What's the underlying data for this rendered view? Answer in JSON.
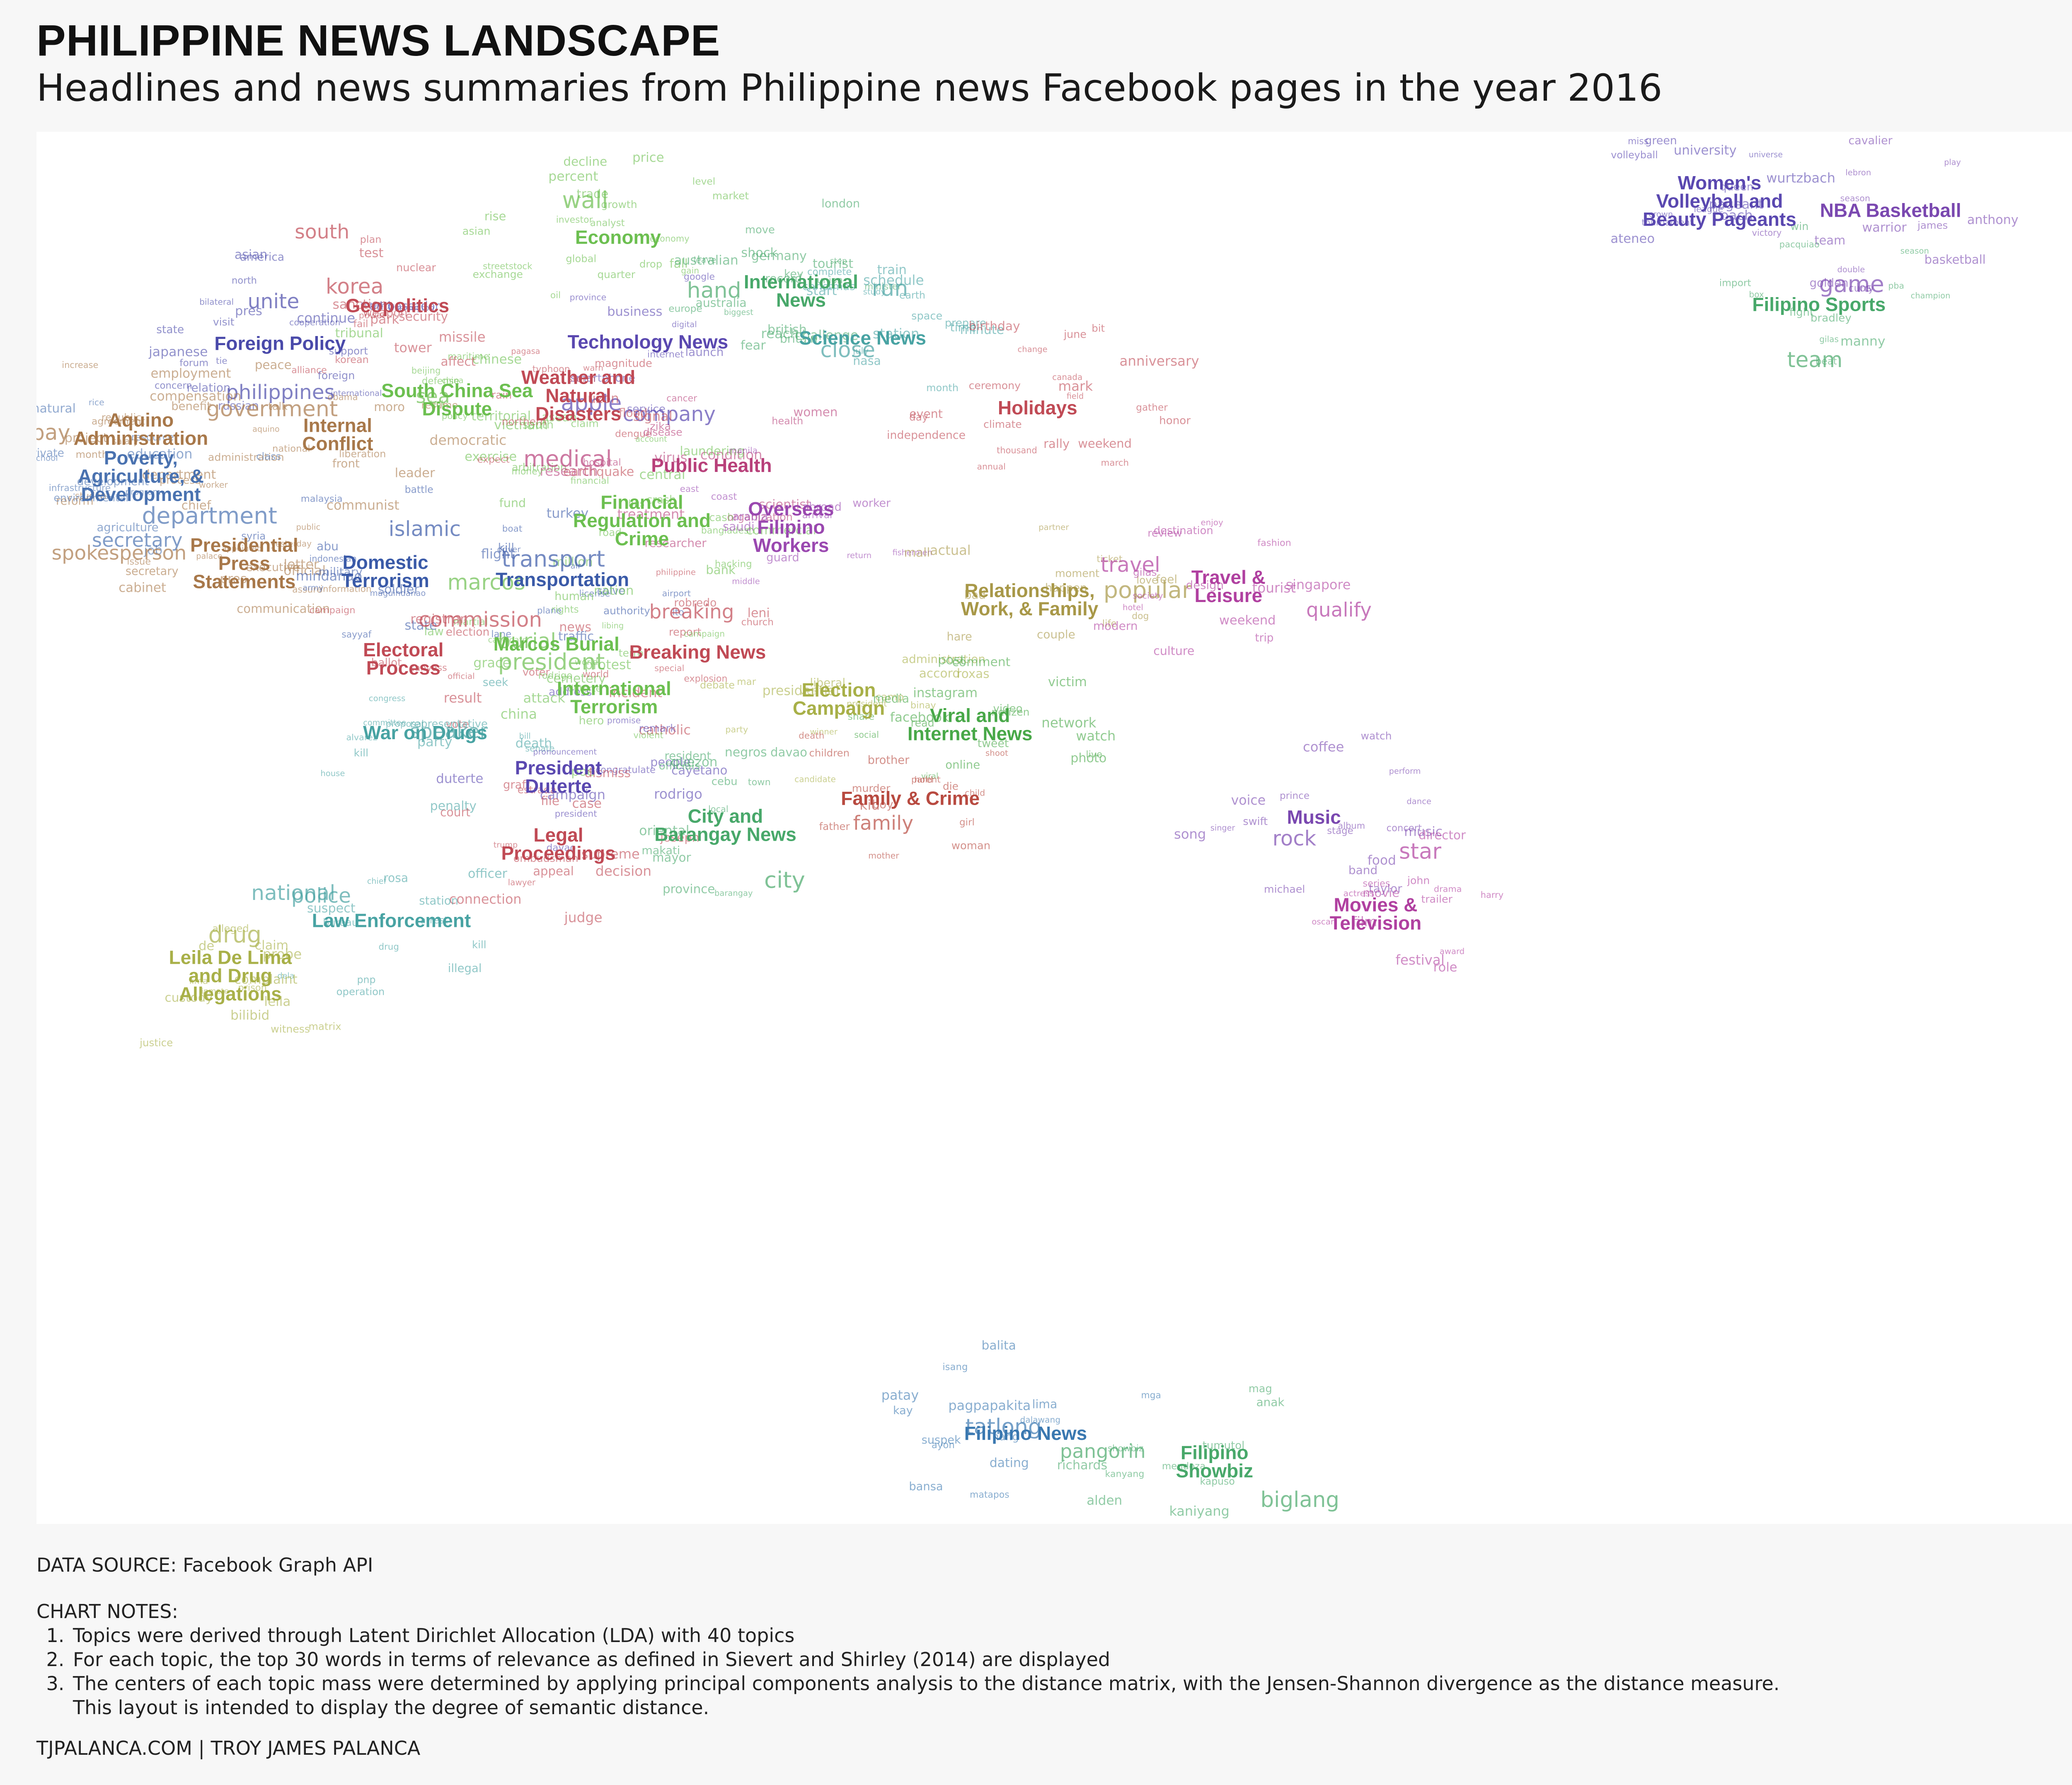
{
  "title": "PHILIPPINE NEWS LANDSCAPE",
  "subtitle": "Headlines and news summaries from Philippine news Facebook pages in the year 2016",
  "source": "DATA SOURCE: Facebook Graph API",
  "notes": {
    "heading": "CHART NOTES:",
    "items": [
      "Topics were derived through Latent Dirichlet Allocation (LDA) with 40 topics",
      "For each topic, the top 30 words in terms of relevance as defined in Sievert and Shirley (2014) are displayed",
      "The centers of each topic mass were determined by applying principal components analysis to the distance matrix, with the Jensen-Shannon divergence as the distance measure.",
      "This layout is intended to display the degree of semantic distance."
    ]
  },
  "credit": "TJPALANCA.COM | TROY JAMES PALANCA",
  "chart_data": {
    "type": "scatter",
    "title": "PHILIPPINE NEWS LANDSCAPE",
    "grid": false,
    "xlim": [
      0,
      1000
    ],
    "ylim": [
      0,
      1000
    ],
    "topics": [
      {
        "label": "Economy",
        "x": 280,
        "y": 60,
        "color": "#6cbf50",
        "words": [
          "wall",
          "percent",
          "decline",
          "oil",
          "investor",
          "price",
          "fall",
          "global",
          "market",
          "streetstock",
          "drop",
          "asian",
          "growth",
          "level",
          "rise",
          "gain",
          "trade",
          "quarter",
          "exchange",
          "economy",
          "analyst"
        ]
      },
      {
        "label": "International News",
        "x": 372,
        "y": 100,
        "color": "#48a86a",
        "words": [
          "british",
          "hand",
          "key",
          "australia",
          "reach",
          "challenge",
          "record",
          "shock",
          "germany",
          "minister",
          "australian",
          "leave",
          "union",
          "europe",
          "tourist",
          "biggest",
          "fear",
          "london",
          "step",
          "britain",
          "move"
        ]
      },
      {
        "label": "Geopolitics",
        "x": 169,
        "y": 111,
        "color": "#c04a55",
        "words": [
          "south",
          "korea",
          "korean",
          "fail",
          "missile",
          "test",
          "nuclear",
          "sanction",
          "weapon",
          "power",
          "security",
          "plan",
          "tower",
          "park",
          "alliance"
        ]
      },
      {
        "label": "Foreign Policy",
        "x": 110,
        "y": 139,
        "color": "#4a4aaa",
        "words": [
          "philippines",
          "unite",
          "state",
          "north",
          "international",
          "foreign",
          "relation",
          "visit",
          "forum",
          "ambassador",
          "concern",
          "support",
          "washington",
          "tie",
          "continue",
          "asian",
          "japanese",
          "russian",
          "bilateral",
          "country",
          "pres",
          "america",
          "cooperation"
        ]
      },
      {
        "label": "Technology News",
        "x": 295,
        "y": 138,
        "color": "#5a48b0",
        "words": [
          "company",
          "apple",
          "business",
          "google",
          "internet",
          "smartphone",
          "launch",
          "digital",
          "service",
          "province"
        ]
      },
      {
        "label": "Science News",
        "x": 403,
        "y": 135,
        "color": "#48a3a3",
        "words": [
          "run",
          "close",
          "study",
          "minute",
          "nasa",
          "space",
          "prepare",
          "christmas",
          "complete",
          "july",
          "earth",
          "station",
          "schedule",
          "train",
          "time",
          "month",
          "start"
        ]
      },
      {
        "label": "South China Sea Dispute",
        "x": 199,
        "y": 181,
        "color": "#6cbf50",
        "words": [
          "sea",
          "arbitration",
          "claim",
          "tribunal",
          "maritime",
          "china",
          "chinese",
          "beijing",
          "south",
          "defense",
          "policy",
          "territorial",
          "vietnam",
          "asean",
          "talk",
          "exercise"
        ]
      },
      {
        "label": "Weather and Natural Disasters",
        "x": 260,
        "y": 178,
        "color": "#c04a55",
        "words": [
          "typhoon",
          "storm",
          "northern",
          "luzon",
          "signal",
          "warn",
          "earthquake",
          "expect",
          "flood",
          "rain",
          "pagasa",
          "affect",
          "magnitude",
          "dengue"
        ]
      },
      {
        "label": "Holidays",
        "x": 491,
        "y": 187,
        "color": "#c04a55",
        "words": [
          "day",
          "bit",
          "independence",
          "anniversary",
          "weekend",
          "thousand",
          "canada",
          "march",
          "gather",
          "mark",
          "climate",
          "rally",
          "event",
          "birthday",
          "annual",
          "ceremony",
          "honor",
          "june",
          "change",
          "field"
        ]
      },
      {
        "label": "Aquino Administration",
        "x": 40,
        "y": 203,
        "color": "#a8784a",
        "words": [
          "month",
          "pay",
          "aquino",
          "republic",
          "salary",
          "reform",
          "compensation",
          "administration",
          "project",
          "benefit",
          "process",
          "agreement",
          "student",
          "department",
          "employment",
          "worker",
          "increase"
        ]
      },
      {
        "label": "Internal Conflict",
        "x": 139,
        "y": 207,
        "color": "#a8784a",
        "words": [
          "government",
          "communist",
          "peace",
          "democratic",
          "obama",
          "liberation",
          "moro",
          "front",
          "talk",
          "national",
          "resume",
          "leader"
        ]
      },
      {
        "label": "Public Health",
        "x": 327,
        "y": 230,
        "color": "#b8407a",
        "words": [
          "hospital",
          "medical",
          "organization",
          "research",
          "condition",
          "scientist",
          "health",
          "researcher",
          "cancer",
          "treatment",
          "disease",
          "women",
          "virus",
          "zika"
        ]
      },
      {
        "label": "Poverty, Agriculture, & Development",
        "x": 40,
        "y": 238,
        "color": "#4a72b0",
        "words": [
          "department",
          "secretary",
          "agriculture",
          "development",
          "infrastructure",
          "school",
          "rice",
          "natural",
          "resource",
          "environmental",
          "education",
          "job",
          "private",
          "class",
          "program"
        ]
      },
      {
        "label": "Financial Regulation and Crime",
        "x": 292,
        "y": 271,
        "color": "#6cbf50",
        "words": [
          "bank",
          "million",
          "money",
          "financial",
          "commercial",
          "central",
          "laundering",
          "fund",
          "account",
          "cash",
          "bangladesh",
          "hacking",
          "crash",
          "road",
          "bus"
        ]
      },
      {
        "label": "Overseas Filipino Workers",
        "x": 367,
        "y": 276,
        "color": "#9a48b0",
        "words": [
          "saudi",
          "arabia",
          "coast",
          "guard",
          "abroad",
          "worker",
          "return",
          "arrival",
          "fishermen",
          "middle",
          "east",
          "manila"
        ]
      },
      {
        "label": "Presidential Press Statements",
        "x": 92,
        "y": 303,
        "color": "#a8784a",
        "words": [
          "secretary",
          "spokesperson",
          "official",
          "communication",
          "chief",
          "public",
          "palace",
          "assure",
          "appointed",
          "executive",
          "cabinet",
          "issue",
          "information",
          "pres",
          "yesterday",
          "letter"
        ]
      },
      {
        "label": "Domestic Terrorism",
        "x": 163,
        "y": 309,
        "color": "#3a5aa8",
        "words": [
          "military",
          "islamic",
          "indonesian",
          "army",
          "malaysia",
          "syria",
          "sayyaf",
          "abu",
          "state",
          "maguindanao",
          "mindanao",
          "battle",
          "soldier",
          "kill"
        ]
      },
      {
        "label": "Transportation",
        "x": 252,
        "y": 315,
        "color": "#3a5aa8",
        "words": [
          "traffic",
          "transport",
          "flight",
          "plane",
          "airport",
          "turkey",
          "driver",
          "license",
          "authority",
          "lane",
          "boat",
          "solve",
          "lto",
          "air"
        ]
      },
      {
        "label": "Relationships, Work, & Family",
        "x": 487,
        "y": 330,
        "color": "#a89848",
        "words": [
          "ticket",
          "popular",
          "mall",
          "partner",
          "bad",
          "life",
          "happen",
          "actual",
          "moment",
          "hare",
          "love",
          "couple",
          "dog",
          "feel"
        ]
      },
      {
        "label": "Travel & Leisure",
        "x": 587,
        "y": 320,
        "color": "#b040a0",
        "words": [
          "qualify",
          "travel",
          "society",
          "tourist",
          "trip",
          "destination",
          "enjoy",
          "review",
          "modern",
          "hotel",
          "weekend",
          "design",
          "singapore",
          "fashion",
          "culture",
          "gilas"
        ]
      },
      {
        "label": "Marcos Burial",
        "x": 249,
        "y": 363,
        "color": "#6cbf50",
        "words": [
          "marcos",
          "burial",
          "hero",
          "cemetery",
          "martial",
          "law",
          "human",
          "rights",
          "protest",
          "candidate",
          "libing",
          "nation"
        ]
      },
      {
        "label": "Electoral Process",
        "x": 172,
        "y": 374,
        "color": "#c04a55",
        "words": [
          "election",
          "commission",
          "vote",
          "campaign",
          "canvass",
          "registrar",
          "voter",
          "ballot",
          "official",
          "result"
        ]
      },
      {
        "label": "Breaking News",
        "x": 320,
        "y": 369,
        "color": "#c04a55",
        "words": [
          "breaking",
          "news",
          "report",
          "explosion",
          "incident",
          "catholic",
          "church",
          "robredo",
          "leni",
          "special",
          "world",
          "philippine"
        ]
      },
      {
        "label": "International Terrorism",
        "x": 278,
        "y": 403,
        "color": "#6cbf50",
        "words": [
          "president",
          "duterte",
          "china",
          "rodrigo",
          "attack",
          "terror",
          "violent",
          "campaign",
          "grace",
          "poe",
          "world"
        ]
      },
      {
        "label": "Election Campaign",
        "x": 391,
        "y": 404,
        "color": "#a8b048",
        "words": [
          "candidate",
          "presidential",
          "debate",
          "binay",
          "roxas",
          "vice",
          "president",
          "party",
          "liberal",
          "administration",
          "camp",
          "accord",
          "winner",
          "mar"
        ]
      },
      {
        "label": "Viral and Internet News",
        "x": 457,
        "y": 423,
        "color": "#48a848",
        "words": [
          "video",
          "social",
          "media",
          "photo",
          "viral",
          "facebook",
          "network",
          "online",
          "live",
          "post",
          "netizen",
          "share",
          "comment",
          "read",
          "watch",
          "instagram",
          "tweet",
          "victim"
        ]
      },
      {
        "label": "War on Drugs",
        "x": 183,
        "y": 429,
        "color": "#48a3a3",
        "words": [
          "house",
          "speaker",
          "committee",
          "death",
          "penalty",
          "senate",
          "bill",
          "congress",
          "representative",
          "party",
          "seek",
          "kill",
          "proposal",
          "alvarez"
        ]
      },
      {
        "label": "President Duterte",
        "x": 250,
        "y": 462,
        "color": "#5a48b0",
        "words": [
          "president",
          "duterte",
          "rodrigo",
          "davao",
          "pronouncement",
          "address",
          "remark",
          "campaign",
          "promise",
          "congratulate",
          "cayetano",
          "people"
        ]
      },
      {
        "label": "Family & Crime",
        "x": 427,
        "y": 478,
        "color": "#b84a40",
        "words": [
          "family",
          "murder",
          "mother",
          "brother",
          "boy",
          "father",
          "girl",
          "death",
          "woman",
          "child",
          "parent",
          "die",
          "shoot",
          "hold",
          "children",
          "kid"
        ]
      },
      {
        "label": "City and Barangay News",
        "x": 334,
        "y": 498,
        "color": "#48a86a",
        "words": [
          "city",
          "mayor",
          "barangay",
          "quezon",
          "makati",
          "davao",
          "cebu",
          "local",
          "resident",
          "officials",
          "oriental",
          "negros",
          "province",
          "town"
        ]
      },
      {
        "label": "Legal Proceedings",
        "x": 250,
        "y": 512,
        "color": "#c04a55",
        "words": [
          "judge",
          "court",
          "case",
          "supreme",
          "file",
          "trump",
          "ombudsman",
          "appeal",
          "dismiss",
          "decision",
          "lawyer",
          "graft",
          "connection",
          "joseph",
          "estrada"
        ]
      },
      {
        "label": "Law Enforcement",
        "x": 166,
        "y": 569,
        "color": "#48a3a3",
        "words": [
          "police",
          "national",
          "operation",
          "officer",
          "chief",
          "arrest",
          "pnp",
          "illegal",
          "bureau",
          "station",
          "suspect",
          "dela",
          "rosa",
          "kill",
          "drug"
        ]
      },
      {
        "label": "Leila De Lima and Drug Allegations",
        "x": 85,
        "y": 610,
        "color": "#a8b048",
        "words": [
          "drug",
          "justice",
          "de",
          "lima",
          "leila",
          "bilibid",
          "inmate",
          "probe",
          "claim",
          "witness",
          "custody",
          "prison",
          "complaint",
          "alleged",
          "matrix"
        ]
      },
      {
        "label": "Music",
        "x": 630,
        "y": 492,
        "color": "#7a48b0",
        "words": [
          "food",
          "rock",
          "music",
          "concert",
          "voice",
          "singer",
          "song",
          "album",
          "stage",
          "dance",
          "band",
          "perform",
          "watch",
          "coffee",
          "prince",
          "michael",
          "taylor",
          "swift"
        ]
      },
      {
        "label": "Movies & Television",
        "x": 661,
        "y": 564,
        "color": "#b040a0",
        "words": [
          "star",
          "actress",
          "director",
          "trailer",
          "film",
          "movie",
          "festival",
          "drama",
          "oscar",
          "series",
          "role",
          "award",
          "john",
          "harry"
        ]
      },
      {
        "label": "Women's Volleyball and Beauty Pageants",
        "x": 834,
        "y": 33,
        "color": "#5a48b0",
        "words": [
          "university",
          "coach",
          "league",
          "volleyball",
          "pageant",
          "universe",
          "crown",
          "queen",
          "tournament",
          "ateneo",
          "miss",
          "green",
          "wurtzbach"
        ]
      },
      {
        "label": "NBA Basketball",
        "x": 920,
        "y": 40,
        "color": "#7a48b0",
        "words": [
          "game",
          "james",
          "team",
          "warrior",
          "golden",
          "basketball",
          "los",
          "curry",
          "anthony",
          "season",
          "double",
          "victory",
          "play",
          "cavalier",
          "lebron"
        ]
      },
      {
        "label": "Filipino Sports",
        "x": 884,
        "y": 110,
        "color": "#48a86a",
        "words": [
          "pba",
          "team",
          "season",
          "champion",
          "fight",
          "pacquiao",
          "box",
          "manny",
          "beat",
          "win",
          "import",
          "bradley",
          "gilas"
        ]
      },
      {
        "label": "Filipino News",
        "x": 485,
        "y": 951,
        "color": "#3a78b0",
        "words": [
          "tatlong",
          "nang",
          "dating",
          "mga",
          "matapos",
          "bansa",
          "balita",
          "pagpapakita",
          "dalawang",
          "kay",
          "ayon",
          "patay",
          "lima",
          "isang",
          "suspek"
        ]
      },
      {
        "label": "Filipino Showbiz",
        "x": 580,
        "y": 972,
        "color": "#48a86a",
        "words": [
          "pangorin",
          "biglang",
          "showbiz",
          "kapuso",
          "anak",
          "mag",
          "kanyang",
          "richards",
          "mendoza",
          "alden",
          "kaniyang",
          "tumutol"
        ]
      }
    ]
  }
}
